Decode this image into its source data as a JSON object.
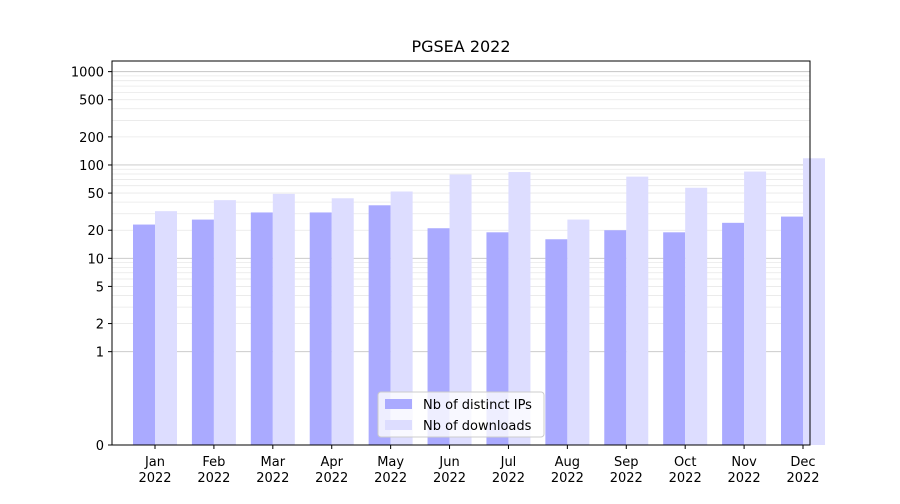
{
  "chart_data": {
    "type": "bar",
    "title": "PGSEA 2022",
    "xlabel": "",
    "ylabel": "",
    "yscale": "symlog",
    "ylim": [
      0,
      1300
    ],
    "yticks": [
      0,
      1,
      2,
      5,
      10,
      20,
      50,
      100,
      200,
      500,
      1000
    ],
    "ytick_labels": [
      "0",
      "1",
      "2",
      "5",
      "10",
      "20",
      "50",
      "100",
      "200",
      "500",
      "1000"
    ],
    "grid": true,
    "legend_position": "bottom-center",
    "categories": [
      [
        "Jan",
        "2022"
      ],
      [
        "Feb",
        "2022"
      ],
      [
        "Mar",
        "2022"
      ],
      [
        "Apr",
        "2022"
      ],
      [
        "May",
        "2022"
      ],
      [
        "Jun",
        "2022"
      ],
      [
        "Jul",
        "2022"
      ],
      [
        "Aug",
        "2022"
      ],
      [
        "Sep",
        "2022"
      ],
      [
        "Oct",
        "2022"
      ],
      [
        "Nov",
        "2022"
      ],
      [
        "Dec",
        "2022"
      ]
    ],
    "series": [
      {
        "name": "Nb of distinct IPs",
        "color": "#aaaaff",
        "values": [
          23,
          26,
          31,
          31,
          37,
          21,
          19,
          16,
          20,
          19,
          24,
          28
        ]
      },
      {
        "name": "Nb of downloads",
        "color": "#ddddff",
        "values": [
          32,
          42,
          49,
          44,
          52,
          79,
          84,
          26,
          75,
          57,
          85,
          118
        ]
      }
    ]
  }
}
